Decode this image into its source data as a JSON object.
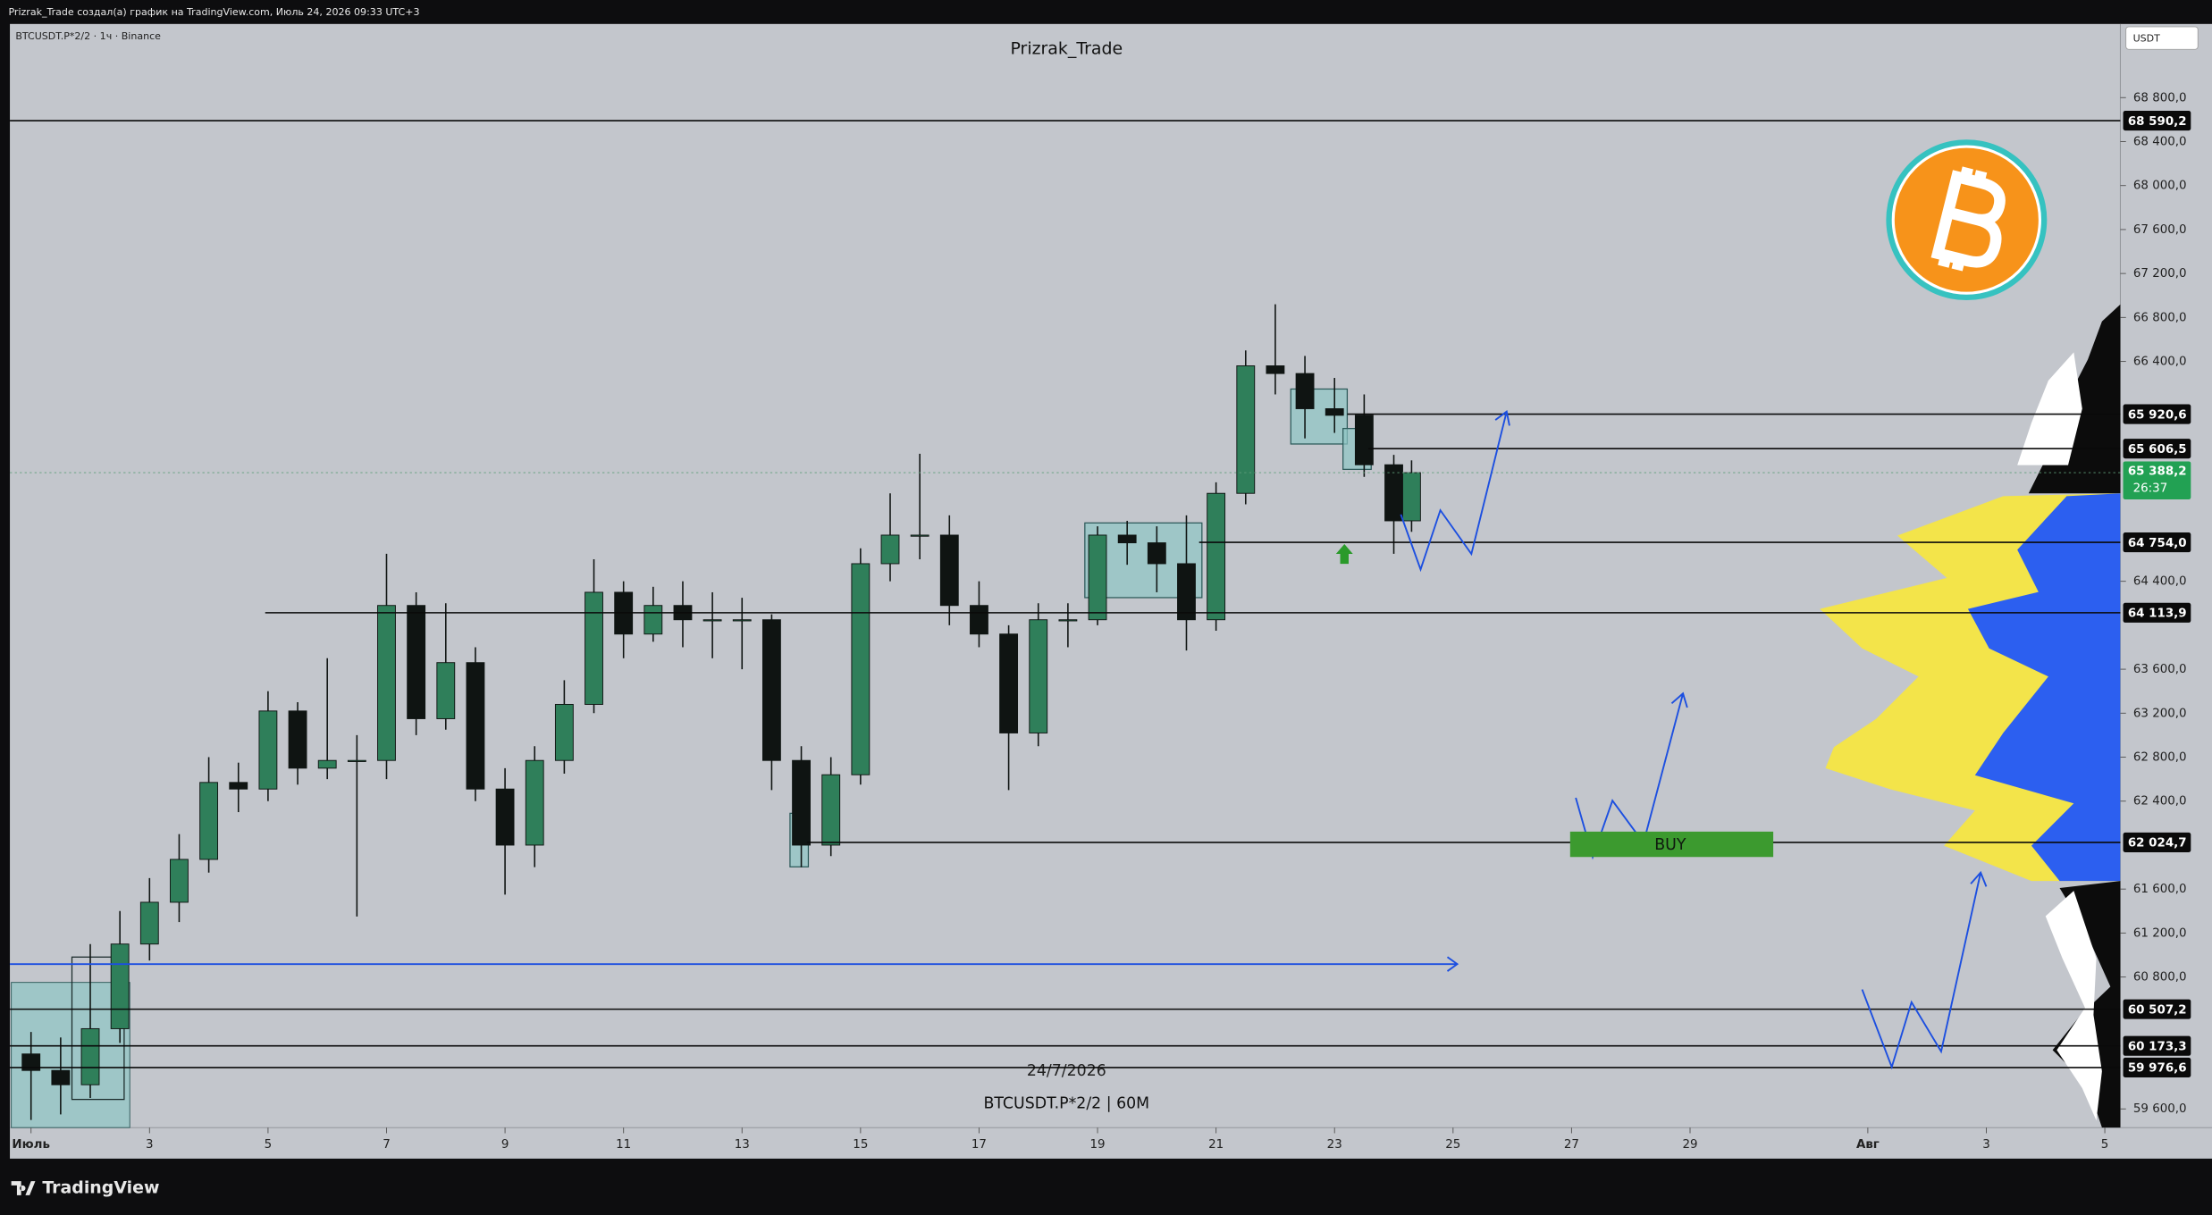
{
  "header": {
    "creator_line": "Prizrak_Trade создал(а) график на TradingView.com, Июль 24, 2026 09:33 UTC+3",
    "symbol_line": "BTCUSDT.P*2/2 · 1ч · Binance",
    "currency": "USDT"
  },
  "watermark": {
    "author": "Prizrak_Trade",
    "date": "24/7/2026",
    "symbol": "BTCUSDT.P*2/2 | 60M"
  },
  "annotation": {
    "buy": "BUY"
  },
  "footer": {
    "brand": "TradingView"
  },
  "chart_data": {
    "type": "candlestick",
    "up_color": "#2f7f5a",
    "down_color": "#0f1412",
    "x": [
      1,
      1.5,
      2,
      2.5,
      3,
      3.5,
      4,
      4.5,
      5,
      5.5,
      6,
      6.5,
      7,
      7.5,
      8,
      8.5,
      9,
      9.5,
      10,
      10.5,
      11,
      11.5,
      12,
      12.5,
      13,
      13.5,
      14,
      14.5,
      15,
      15.5,
      16,
      16.5,
      17,
      17.5,
      18,
      18.5,
      19,
      19.5,
      20,
      20.5,
      21,
      21.5,
      22,
      22.5,
      23,
      23.5,
      24,
      24.3
    ],
    "open": [
      60100,
      59950,
      59820,
      60330,
      61100,
      61480,
      61870,
      62570,
      62510,
      63220,
      62700,
      62770,
      62770,
      64180,
      63150,
      63660,
      62510,
      62000,
      62770,
      63280,
      64300,
      63920,
      64180,
      64050,
      64050,
      64050,
      62770,
      62000,
      62640,
      64560,
      64820,
      64820,
      64180,
      63920,
      63020,
      64050,
      64050,
      64820,
      64750,
      64560,
      64050,
      65200,
      66360,
      66290,
      65970,
      65910,
      65460,
      64950
    ],
    "high": [
      60300,
      60250,
      61100,
      61400,
      61700,
      62100,
      62800,
      62750,
      63400,
      63300,
      63700,
      63000,
      64650,
      64300,
      64200,
      63800,
      62700,
      62900,
      63500,
      64600,
      64400,
      64350,
      64400,
      64300,
      64250,
      64100,
      62900,
      62800,
      64700,
      65200,
      65560,
      65000,
      64400,
      64000,
      64200,
      64200,
      64900,
      64950,
      64900,
      65000,
      65300,
      66500,
      66920,
      66450,
      66250,
      66100,
      65550,
      65500
    ],
    "low": [
      59500,
      59550,
      59700,
      60200,
      60950,
      61300,
      61750,
      62300,
      62400,
      62550,
      62600,
      61350,
      62600,
      63000,
      63050,
      62400,
      61550,
      61800,
      62650,
      63200,
      63700,
      63850,
      63800,
      63700,
      63600,
      62500,
      61800,
      61900,
      62550,
      64400,
      64600,
      64000,
      63800,
      62500,
      62900,
      63800,
      64000,
      64550,
      64300,
      63770,
      63950,
      65100,
      66100,
      65700,
      65750,
      65350,
      64650,
      64850
    ],
    "close": [
      59950,
      59820,
      60330,
      61100,
      61480,
      61870,
      62570,
      62510,
      63220,
      62700,
      62770,
      62770,
      64180,
      63150,
      63660,
      62510,
      62000,
      62770,
      63280,
      64300,
      63920,
      64180,
      64050,
      64050,
      64050,
      62770,
      62000,
      62640,
      64560,
      64820,
      64820,
      64180,
      63920,
      63020,
      64050,
      64050,
      64820,
      64750,
      64560,
      64050,
      65200,
      66360,
      66290,
      65970,
      65910,
      65460,
      64950,
      65388.2
    ],
    "xlim": [
      0.643,
      36.19
    ],
    "xticks": [
      {
        "value": 1,
        "label": "Июль"
      },
      3,
      5,
      7,
      9,
      11,
      13,
      15,
      17,
      19,
      21,
      23,
      25,
      27,
      29,
      {
        "value": 32,
        "label": "Авг"
      },
      {
        "value": 34,
        "label": "3"
      },
      {
        "value": 36,
        "label": "5"
      }
    ],
    "ylim": [
      59430,
      69470
    ],
    "yticks": [
      {
        "value": 68800,
        "label": "68 800,0"
      },
      {
        "value": 68400,
        "label": "68 400,0"
      },
      {
        "value": 68000,
        "label": "68 000,0"
      },
      {
        "value": 67600,
        "label": "67 600,0"
      },
      {
        "value": 67200,
        "label": "67 200,0"
      },
      {
        "value": 66800,
        "label": "66 800,0"
      },
      {
        "value": 66400,
        "label": "66 400,0"
      },
      {
        "value": 64400,
        "label": "64 400,0"
      },
      {
        "value": 63600,
        "label": "63 600,0"
      },
      {
        "value": 63200,
        "label": "63 200,0"
      },
      {
        "value": 62800,
        "label": "62 800,0"
      },
      {
        "value": 62400,
        "label": "62 400,0"
      },
      {
        "value": 61600,
        "label": "61 600,0"
      },
      {
        "value": 61200,
        "label": "61 200,0"
      },
      {
        "value": 60800,
        "label": "60 800,0"
      },
      {
        "value": 59600,
        "label": "59 600,0"
      }
    ],
    "levels": [
      {
        "value": 68590.2,
        "label": "68 590,2"
      },
      {
        "value": 65920.6,
        "label": "65 920,6"
      },
      {
        "value": 65606.5,
        "label": "65 606,5"
      },
      {
        "value": 64754.0,
        "label": "64 754,0"
      },
      {
        "value": 64113.9,
        "label": "64 113,9"
      },
      {
        "value": 62024.7,
        "label": "62 024,7"
      },
      {
        "value": 60507.2,
        "label": "60 507,2"
      },
      {
        "value": 60173.3,
        "label": "60 173,3"
      },
      {
        "value": 59976.6,
        "label": "59 976,6"
      }
    ],
    "last_price": {
      "value": 65388.2,
      "label": "65 388,2",
      "countdown": "26:37",
      "color": "#22a153"
    }
  }
}
